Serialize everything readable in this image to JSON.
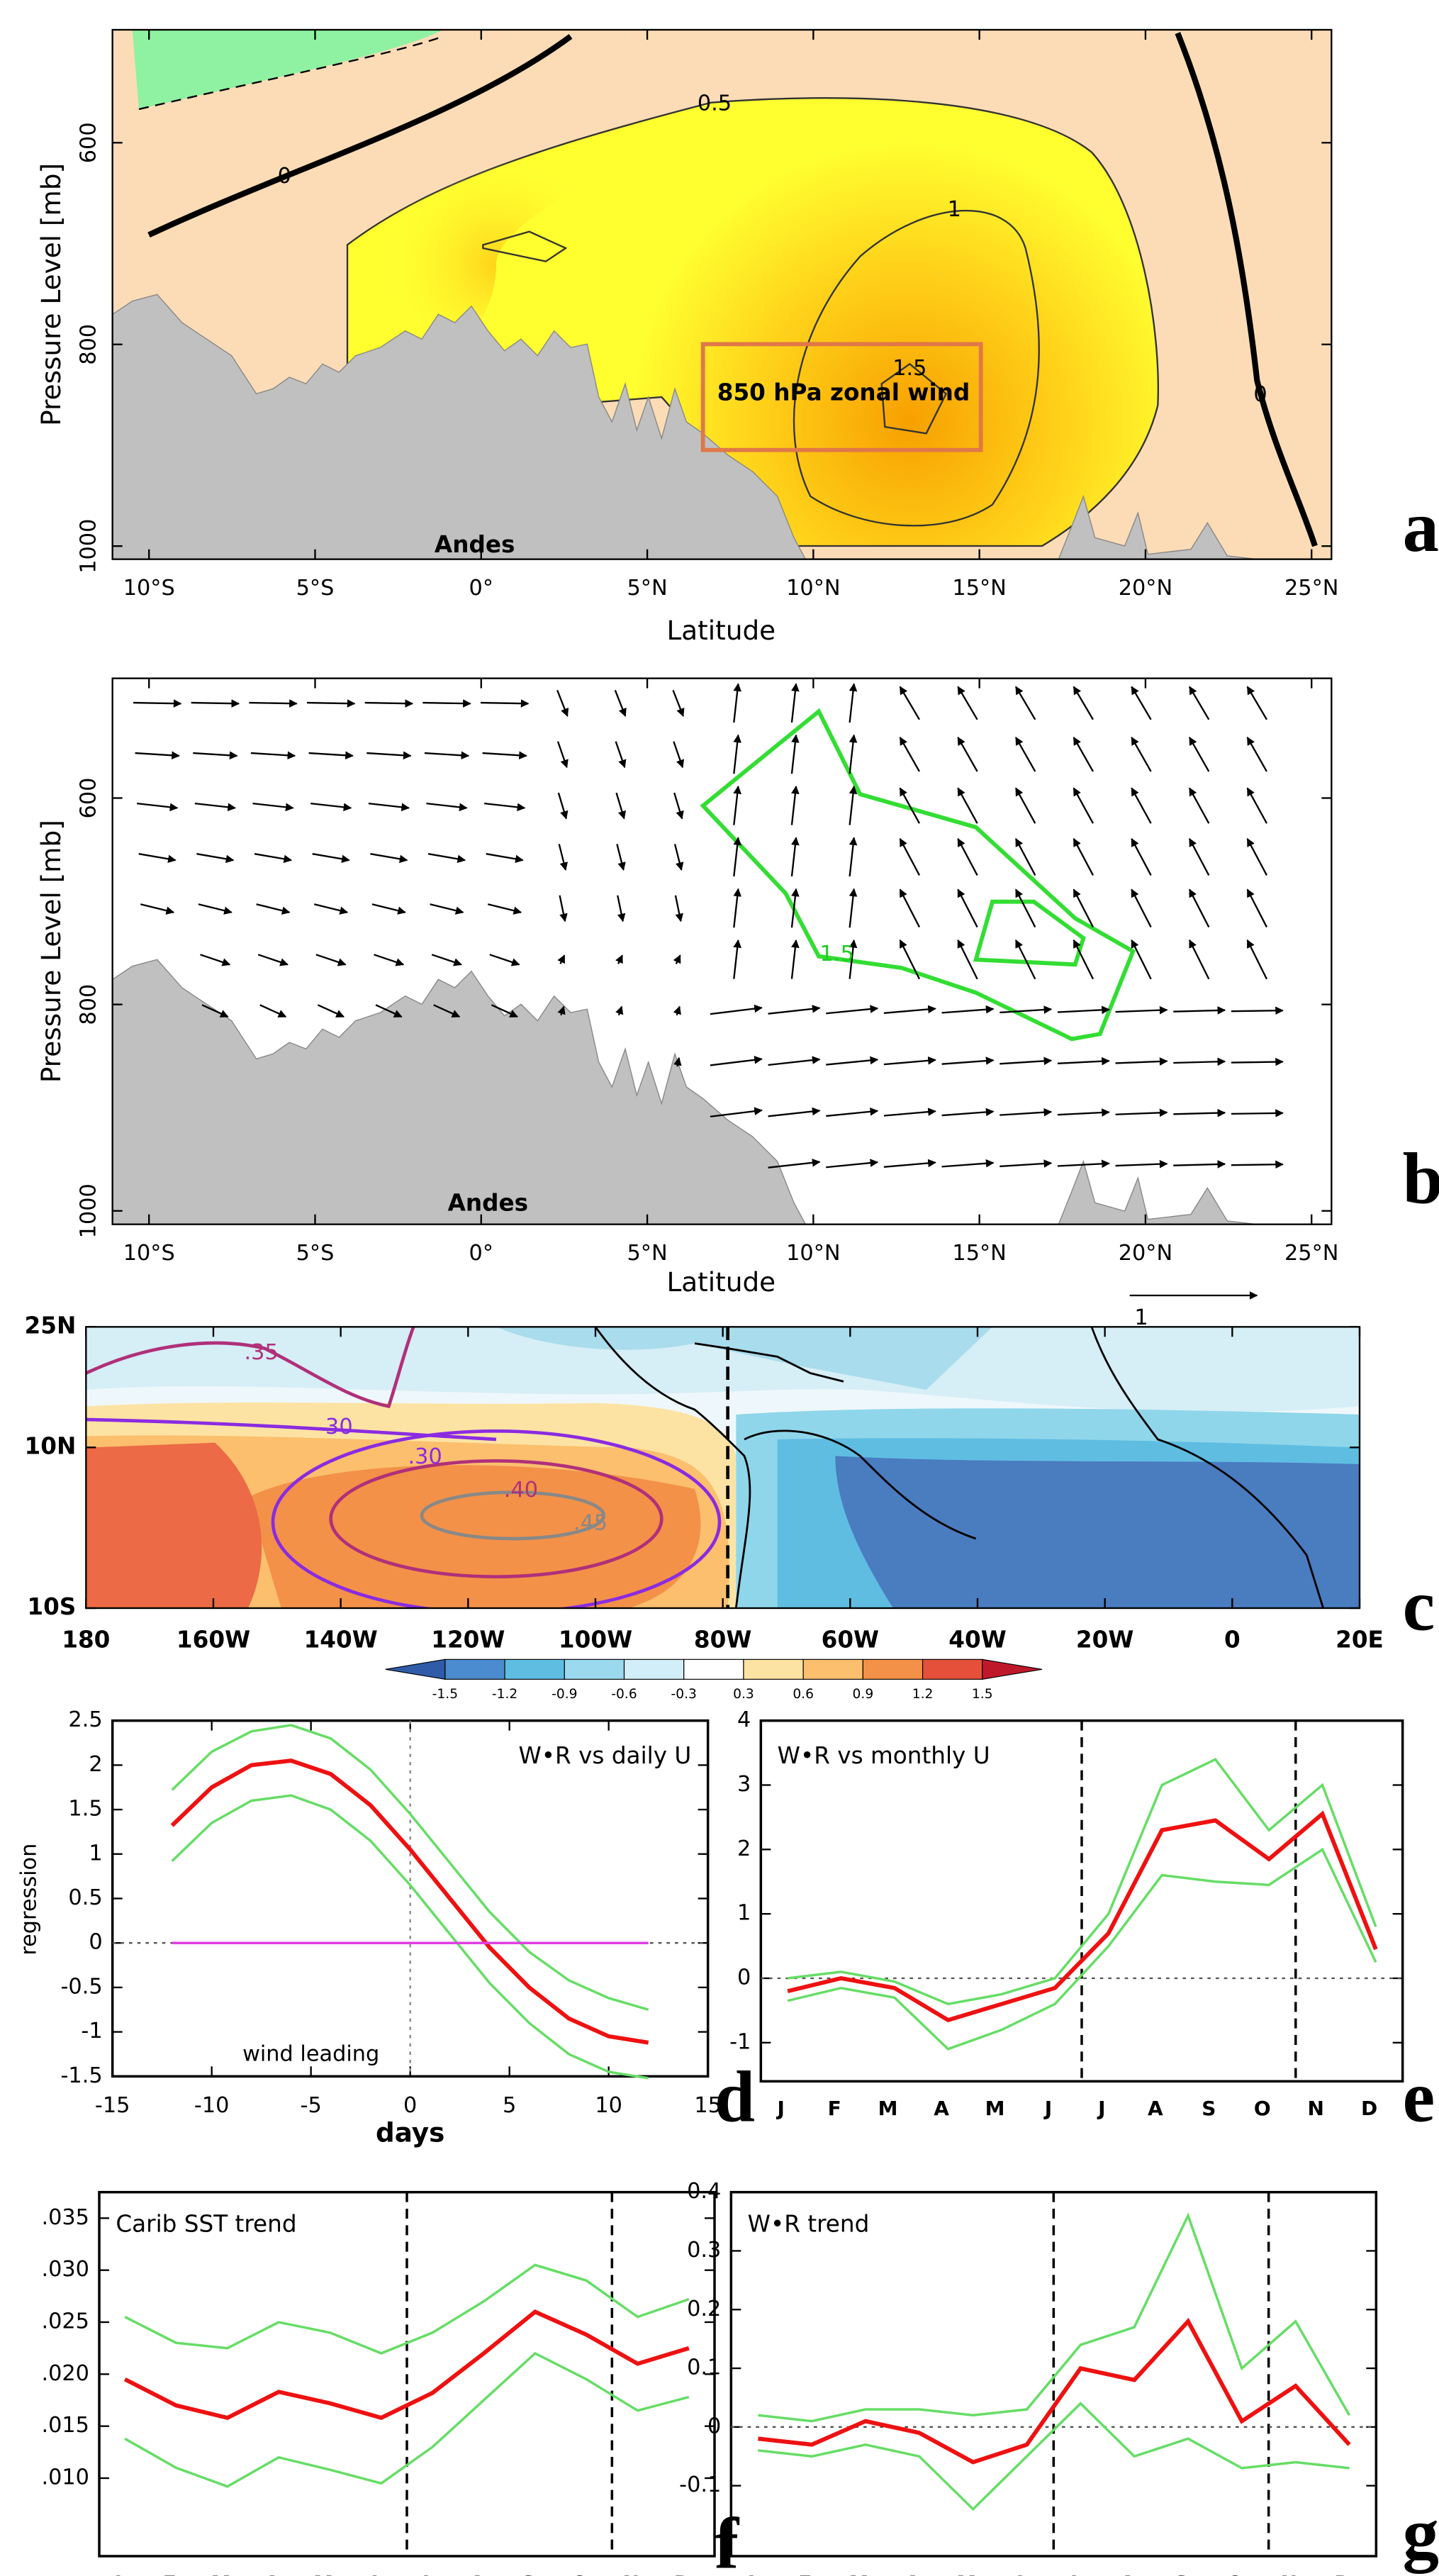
{
  "chart_data": [
    {
      "type": "contour",
      "label": "a",
      "xlabel": "Latitude",
      "ylabel": "Pressure Level [mb]",
      "xlim": [
        -11.1,
        25.6
      ],
      "xticks": [
        {
          "value": -10,
          "label": "10°S"
        },
        {
          "value": -5,
          "label": "5°S"
        },
        {
          "value": 0,
          "label": "0°"
        },
        {
          "value": 5,
          "label": "5°N"
        },
        {
          "value": 10,
          "label": "10°N"
        },
        {
          "value": 15,
          "label": "15°N"
        },
        {
          "value": 20,
          "label": "20°N"
        },
        {
          "value": 25,
          "label": "25°N"
        }
      ],
      "ylim": [
        1013,
        488
      ],
      "yticks": [
        600,
        800,
        1000
      ],
      "annotations": [
        "0",
        "0.5",
        "1",
        "1.5",
        "0",
        "850 hPa zonal wind",
        "Andes"
      ]
    },
    {
      "type": "vector",
      "label": "b",
      "xlabel": "Latitude",
      "ylabel": "Pressure Level [mb]",
      "xlim": [
        -11.1,
        25.6
      ],
      "xticks": [
        {
          "value": -10,
          "label": "10°S"
        },
        {
          "value": -5,
          "label": "5°S"
        },
        {
          "value": 0,
          "label": "0°"
        },
        {
          "value": 5,
          "label": "5°N"
        },
        {
          "value": 10,
          "label": "10°N"
        },
        {
          "value": 15,
          "label": "15°N"
        },
        {
          "value": 20,
          "label": "20°N"
        },
        {
          "value": 25,
          "label": "25°N"
        }
      ],
      "ylim": [
        1013,
        484
      ],
      "yticks": [
        600,
        800,
        1000
      ],
      "annotations": [
        "1.5",
        "Andes",
        "1"
      ]
    },
    {
      "type": "map",
      "label": "c",
      "xlim": [
        -180,
        20
      ],
      "xticks": [
        {
          "value": -180,
          "label": "180"
        },
        {
          "value": -160,
          "label": "160W"
        },
        {
          "value": -140,
          "label": "140W"
        },
        {
          "value": -120,
          "label": "120W"
        },
        {
          "value": -100,
          "label": "100W"
        },
        {
          "value": -80,
          "label": "80W"
        },
        {
          "value": -60,
          "label": "60W"
        },
        {
          "value": -40,
          "label": "40W"
        },
        {
          "value": -20,
          "label": "20W"
        },
        0,
        {
          "value": 20,
          "label": "20E"
        }
      ],
      "ylim": [
        -10,
        25
      ],
      "yticks": [
        {
          "value": 25,
          "label": "25N"
        },
        {
          "value": 10,
          "label": "10N"
        },
        {
          "value": -10,
          "label": "10S"
        }
      ],
      "annotations": [
        ".35",
        "30",
        ".30",
        ".40",
        ".45"
      ],
      "colorbar": {
        "ticks": [
          -1.5,
          -1.2,
          -0.9,
          -0.6,
          -0.3,
          0.3,
          0.6,
          0.9,
          1.2,
          1.5
        ],
        "colors": [
          "#2f5ba8",
          "#4b8bcf",
          "#5fbde2",
          "#9bd9ee",
          "#d2eef8",
          "#ffffff",
          "#fde3a3",
          "#fbbf6e",
          "#f39148",
          "#e4503a",
          "#c0182b"
        ]
      }
    },
    {
      "type": "line",
      "label": "d",
      "title": "W•R vs daily U",
      "xlabel": "days",
      "ylabel": "regression",
      "annotations": [
        "wind leading"
      ],
      "x": [
        -12,
        -10,
        -8,
        -6,
        -4,
        -2,
        0,
        2,
        4,
        6,
        8,
        10,
        12
      ],
      "xlim": [
        -15,
        15
      ],
      "xticks": [
        -15,
        -10,
        -5,
        0,
        5,
        10,
        15
      ],
      "ylim": [
        -1.5,
        2.5
      ],
      "yticks": [
        -1.5,
        -1,
        -0.5,
        0,
        0.5,
        1,
        1.5,
        2,
        2.5
      ],
      "series": [
        {
          "color": "#66dd66",
          "values": [
            1.72,
            2.15,
            2.38,
            2.45,
            2.3,
            1.95,
            1.45,
            0.9,
            0.35,
            -0.1,
            -0.42,
            -0.62,
            -0.75
          ]
        },
        {
          "color": "#66dd66",
          "values": [
            0.92,
            1.35,
            1.6,
            1.66,
            1.5,
            1.15,
            0.65,
            0.1,
            -0.45,
            -0.9,
            -1.25,
            -1.45,
            -1.52
          ]
        },
        {
          "color": "#ee1111",
          "values": [
            1.32,
            1.75,
            2.0,
            2.05,
            1.9,
            1.55,
            1.05,
            0.5,
            -0.05,
            -0.5,
            -0.85,
            -1.05,
            -1.12
          ]
        },
        {
          "color": "#e040e0",
          "values": [
            0,
            0,
            0,
            0,
            0,
            0,
            0,
            0,
            0,
            0,
            0,
            0,
            0
          ]
        }
      ]
    },
    {
      "type": "line",
      "label": "e",
      "title": "W•R vs monthly U",
      "categories": [
        "J",
        "F",
        "M",
        "A",
        "M",
        "J",
        "J",
        "A",
        "S",
        "O",
        "N",
        "D"
      ],
      "ylim": [
        -1.6,
        4
      ],
      "yticks": [
        -1,
        0,
        1,
        2,
        3,
        4
      ],
      "series": [
        {
          "color": "#66dd66",
          "values": [
            0,
            0.1,
            -0.05,
            -0.4,
            -0.25,
            0,
            1.0,
            3.0,
            3.4,
            2.3,
            3.0,
            0.8
          ]
        },
        {
          "color": "#66dd66",
          "values": [
            -0.35,
            -0.15,
            -0.3,
            -1.1,
            -0.8,
            -0.4,
            0.5,
            1.6,
            1.5,
            1.45,
            2.0,
            0.25
          ]
        },
        {
          "color": "#ee1111",
          "values": [
            -0.2,
            0,
            -0.15,
            -0.65,
            -0.4,
            -0.15,
            0.7,
            2.3,
            2.45,
            1.85,
            2.55,
            0.45
          ]
        }
      ]
    },
    {
      "type": "line",
      "label": "f",
      "title": "Carib SST trend",
      "categories": [
        "J",
        "F",
        "M",
        "A",
        "M",
        "J",
        "J",
        "A",
        "S",
        "O",
        "N",
        "D"
      ],
      "ylim": [
        0.0025,
        0.0375
      ],
      "yticks": [
        {
          "value": 0.01,
          "label": ".010"
        },
        {
          "value": 0.015,
          "label": ".015"
        },
        {
          "value": 0.02,
          "label": ".020"
        },
        {
          "value": 0.025,
          "label": ".025"
        },
        {
          "value": 0.03,
          "label": ".030"
        },
        {
          "value": 0.035,
          "label": ".035"
        }
      ],
      "series": [
        {
          "color": "#66dd66",
          "values": [
            0.0255,
            0.023,
            0.0225,
            0.025,
            0.024,
            0.022,
            0.024,
            0.027,
            0.0305,
            0.029,
            0.0255,
            0.0272
          ]
        },
        {
          "color": "#66dd66",
          "values": [
            0.0138,
            0.011,
            0.0092,
            0.012,
            0.0108,
            0.0095,
            0.013,
            0.0175,
            0.022,
            0.0195,
            0.0165,
            0.0178
          ]
        },
        {
          "color": "#ee1111",
          "values": [
            0.0195,
            0.017,
            0.0158,
            0.0183,
            0.0172,
            0.0158,
            0.0182,
            0.022,
            0.026,
            0.0238,
            0.021,
            0.0225
          ]
        }
      ]
    },
    {
      "type": "line",
      "label": "g",
      "title": "W•R trend",
      "categories": [
        "J",
        "F",
        "M",
        "A",
        "M",
        "J",
        "J",
        "A",
        "S",
        "O",
        "N",
        "D"
      ],
      "ylim": [
        -0.22,
        0.4
      ],
      "yticks": [
        -0.1,
        0,
        0.1,
        0.2,
        0.3,
        0.4
      ],
      "series": [
        {
          "color": "#66dd66",
          "values": [
            0.02,
            0.01,
            0.03,
            0.03,
            0.02,
            0.03,
            0.14,
            0.17,
            0.36,
            0.1,
            0.18,
            0.02
          ]
        },
        {
          "color": "#66dd66",
          "values": [
            -0.04,
            -0.05,
            -0.03,
            -0.05,
            -0.14,
            -0.05,
            0.04,
            -0.05,
            -0.02,
            -0.07,
            -0.06,
            -0.07
          ]
        },
        {
          "color": "#ee1111",
          "values": [
            -0.02,
            -0.03,
            0.01,
            -0.01,
            -0.06,
            -0.03,
            0.1,
            0.08,
            0.18,
            0.01,
            0.07,
            -0.03
          ]
        }
      ]
    }
  ]
}
